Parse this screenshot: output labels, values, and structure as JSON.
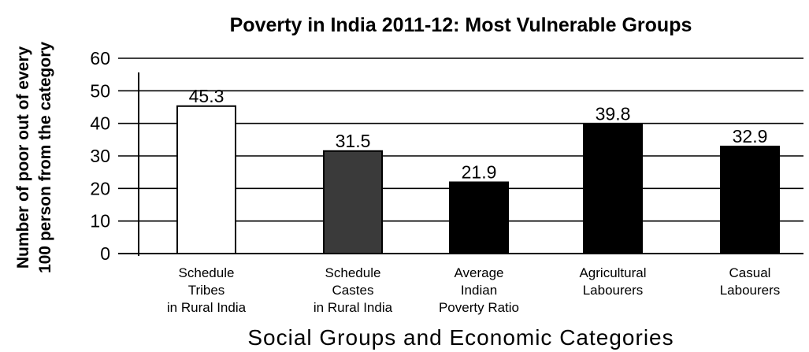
{
  "chart_data": {
    "type": "bar",
    "title": "Poverty in India 2011-12: Most Vulnerable Groups",
    "ylabel_lines": [
      "Number of poor out of every",
      "100 person from the category"
    ],
    "xlabel": "Social Groups and Economic Categories",
    "ylim": [
      0,
      60
    ],
    "yticks": [
      0,
      10,
      20,
      30,
      40,
      50,
      60
    ],
    "grid": true,
    "categories": [
      [
        "Schedule",
        "Tribes",
        "in Rural India"
      ],
      [
        "Schedule",
        "Castes",
        "in Rural India"
      ],
      [
        "Average",
        "Indian",
        "Poverty Ratio"
      ],
      [
        "Agricultural",
        "Labourers"
      ],
      [
        "Casual",
        "Labourers"
      ]
    ],
    "values": [
      45.3,
      31.5,
      21.9,
      39.8,
      32.9
    ],
    "value_labels": [
      "45.3",
      "31.5",
      "21.9",
      "39.8",
      "32.9"
    ],
    "bar_colors": [
      "#ffffff",
      "#3a3a3a",
      "#000000",
      "#000000",
      "#000000"
    ]
  }
}
